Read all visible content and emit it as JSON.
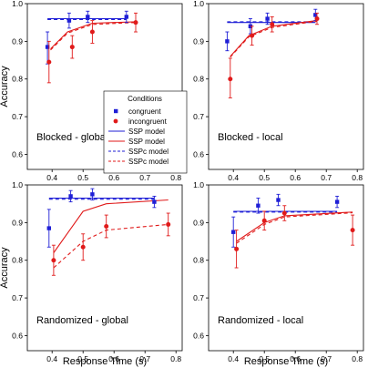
{
  "figure": {
    "xlabel": "Response Time (s)",
    "ylabel": "Accuracy"
  },
  "legend": {
    "title": "Conditions",
    "entries": [
      {
        "label": "congruent",
        "kind": "point-square",
        "color": "#1f1fd6"
      },
      {
        "label": "incongruent",
        "kind": "point-circle",
        "color": "#e01a1a"
      },
      {
        "label": "SSP model",
        "kind": "line-solid",
        "color": "#1f1fd6"
      },
      {
        "label": "SSP model",
        "kind": "line-solid",
        "color": "#e01a1a"
      },
      {
        "label": "SSPc model",
        "kind": "line-dashed",
        "color": "#1f1fd6"
      },
      {
        "label": "SSPc model",
        "kind": "line-dashed",
        "color": "#e01a1a"
      }
    ]
  },
  "colors": {
    "congruent": "#1f1fd6",
    "incongruent": "#e01a1a"
  },
  "chart_data": [
    {
      "type": "scatter",
      "title": "Blocked - global",
      "xlabel": "",
      "ylabel": "Accuracy",
      "xlim": [
        0.32,
        0.82
      ],
      "ylim": [
        0.56,
        1.0
      ],
      "xticks": [
        "0.4",
        "0.5",
        "0.6",
        "0.7",
        "0.8"
      ],
      "yticks": [
        "0.6",
        "0.7",
        "0.8",
        "0.9",
        "1.0"
      ],
      "series": [
        {
          "name": "congruent",
          "kind": "points",
          "color": "#1f1fd6",
          "points": [
            {
              "x": 0.385,
              "y": 0.885,
              "lo": 0.84,
              "hi": 0.925
            },
            {
              "x": 0.455,
              "y": 0.955,
              "lo": 0.935,
              "hi": 0.975
            },
            {
              "x": 0.515,
              "y": 0.965,
              "lo": 0.95,
              "hi": 0.98
            },
            {
              "x": 0.64,
              "y": 0.965,
              "lo": 0.95,
              "hi": 0.98
            }
          ]
        },
        {
          "name": "incongruent",
          "kind": "points",
          "color": "#e01a1a",
          "points": [
            {
              "x": 0.39,
              "y": 0.845,
              "lo": 0.79,
              "hi": 0.9
            },
            {
              "x": 0.465,
              "y": 0.885,
              "lo": 0.855,
              "hi": 0.915
            },
            {
              "x": 0.53,
              "y": 0.925,
              "lo": 0.895,
              "hi": 0.955
            },
            {
              "x": 0.67,
              "y": 0.95,
              "lo": 0.925,
              "hi": 0.975
            }
          ]
        },
        {
          "name": "SSP model",
          "kind": "solid",
          "color": "#1f1fd6",
          "points": [
            {
              "x": 0.385,
              "y": 0.96
            },
            {
              "x": 0.64,
              "y": 0.96
            }
          ]
        },
        {
          "name": "SSPc model",
          "kind": "dashed",
          "color": "#1f1fd6",
          "points": [
            {
              "x": 0.385,
              "y": 0.958
            },
            {
              "x": 0.64,
              "y": 0.958
            }
          ]
        },
        {
          "name": "SSP model",
          "kind": "solid",
          "color": "#e01a1a",
          "points": [
            {
              "x": 0.395,
              "y": 0.88
            },
            {
              "x": 0.45,
              "y": 0.925
            },
            {
              "x": 0.53,
              "y": 0.948
            },
            {
              "x": 0.67,
              "y": 0.952
            }
          ]
        },
        {
          "name": "SSPc model",
          "kind": "dashed",
          "color": "#e01a1a",
          "points": [
            {
              "x": 0.395,
              "y": 0.877
            },
            {
              "x": 0.45,
              "y": 0.922
            },
            {
              "x": 0.53,
              "y": 0.945
            },
            {
              "x": 0.67,
              "y": 0.95
            }
          ]
        }
      ]
    },
    {
      "type": "scatter",
      "title": "Blocked - local",
      "xlabel": "",
      "ylabel": "",
      "xlim": [
        0.32,
        0.82
      ],
      "ylim": [
        0.56,
        1.0
      ],
      "xticks": [
        "0.4",
        "0.5",
        "0.6",
        "0.7",
        "0.8"
      ],
      "yticks": [
        "0.6",
        "0.7",
        "0.8",
        "0.9",
        "1.0"
      ],
      "series": [
        {
          "name": "congruent",
          "kind": "points",
          "color": "#1f1fd6",
          "points": [
            {
              "x": 0.38,
              "y": 0.9,
              "lo": 0.875,
              "hi": 0.925
            },
            {
              "x": 0.455,
              "y": 0.94,
              "lo": 0.92,
              "hi": 0.96
            },
            {
              "x": 0.51,
              "y": 0.96,
              "lo": 0.945,
              "hi": 0.975
            },
            {
              "x": 0.665,
              "y": 0.97,
              "lo": 0.955,
              "hi": 0.985
            }
          ]
        },
        {
          "name": "incongruent",
          "kind": "points",
          "color": "#e01a1a",
          "points": [
            {
              "x": 0.39,
              "y": 0.8,
              "lo": 0.75,
              "hi": 0.855
            },
            {
              "x": 0.46,
              "y": 0.915,
              "lo": 0.89,
              "hi": 0.94
            },
            {
              "x": 0.525,
              "y": 0.945,
              "lo": 0.925,
              "hi": 0.965
            },
            {
              "x": 0.67,
              "y": 0.96,
              "lo": 0.945,
              "hi": 0.975
            }
          ]
        },
        {
          "name": "SSP model",
          "kind": "solid",
          "color": "#1f1fd6",
          "points": [
            {
              "x": 0.38,
              "y": 0.95
            },
            {
              "x": 0.665,
              "y": 0.95
            }
          ]
        },
        {
          "name": "SSPc model",
          "kind": "dashed",
          "color": "#1f1fd6",
          "points": [
            {
              "x": 0.38,
              "y": 0.952
            },
            {
              "x": 0.665,
              "y": 0.952
            }
          ]
        },
        {
          "name": "SSP model",
          "kind": "solid",
          "color": "#e01a1a",
          "points": [
            {
              "x": 0.39,
              "y": 0.86
            },
            {
              "x": 0.45,
              "y": 0.915
            },
            {
              "x": 0.525,
              "y": 0.94
            },
            {
              "x": 0.67,
              "y": 0.955
            }
          ]
        },
        {
          "name": "SSPc model",
          "kind": "dashed",
          "color": "#e01a1a",
          "points": [
            {
              "x": 0.39,
              "y": 0.858
            },
            {
              "x": 0.45,
              "y": 0.912
            },
            {
              "x": 0.525,
              "y": 0.937
            },
            {
              "x": 0.67,
              "y": 0.953
            }
          ]
        }
      ]
    },
    {
      "type": "scatter",
      "title": "Randomized - global",
      "xlabel": "Response Time (s)",
      "ylabel": "Accuracy",
      "xlim": [
        0.32,
        0.82
      ],
      "ylim": [
        0.56,
        1.0
      ],
      "xticks": [
        "0.4",
        "0.5",
        "0.6",
        "0.7",
        "0.8"
      ],
      "yticks": [
        "0.6",
        "0.7",
        "0.8",
        "0.9",
        "1.0"
      ],
      "series": [
        {
          "name": "congruent",
          "kind": "points",
          "color": "#1f1fd6",
          "points": [
            {
              "x": 0.39,
              "y": 0.885,
              "lo": 0.835,
              "hi": 0.935
            },
            {
              "x": 0.46,
              "y": 0.97,
              "lo": 0.955,
              "hi": 0.985
            },
            {
              "x": 0.53,
              "y": 0.975,
              "lo": 0.96,
              "hi": 0.99
            },
            {
              "x": 0.73,
              "y": 0.955,
              "lo": 0.94,
              "hi": 0.97
            }
          ]
        },
        {
          "name": "incongruent",
          "kind": "points",
          "color": "#e01a1a",
          "points": [
            {
              "x": 0.405,
              "y": 0.8,
              "lo": 0.76,
              "hi": 0.84
            },
            {
              "x": 0.5,
              "y": 0.835,
              "lo": 0.8,
              "hi": 0.87
            },
            {
              "x": 0.575,
              "y": 0.89,
              "lo": 0.86,
              "hi": 0.92
            },
            {
              "x": 0.775,
              "y": 0.895,
              "lo": 0.865,
              "hi": 0.925
            }
          ]
        },
        {
          "name": "SSP model",
          "kind": "solid",
          "color": "#1f1fd6",
          "points": [
            {
              "x": 0.39,
              "y": 0.965
            },
            {
              "x": 0.73,
              "y": 0.965
            }
          ]
        },
        {
          "name": "SSPc model",
          "kind": "dashed",
          "color": "#1f1fd6",
          "points": [
            {
              "x": 0.39,
              "y": 0.962
            },
            {
              "x": 0.73,
              "y": 0.962
            }
          ]
        },
        {
          "name": "SSP model",
          "kind": "solid",
          "color": "#e01a1a",
          "points": [
            {
              "x": 0.405,
              "y": 0.82
            },
            {
              "x": 0.5,
              "y": 0.93
            },
            {
              "x": 0.575,
              "y": 0.95
            },
            {
              "x": 0.775,
              "y": 0.96
            }
          ]
        },
        {
          "name": "SSPc model",
          "kind": "dashed",
          "color": "#e01a1a",
          "points": [
            {
              "x": 0.405,
              "y": 0.78
            },
            {
              "x": 0.5,
              "y": 0.85
            },
            {
              "x": 0.575,
              "y": 0.88
            },
            {
              "x": 0.775,
              "y": 0.895
            }
          ]
        }
      ]
    },
    {
      "type": "scatter",
      "title": "Randomized - local",
      "xlabel": "Response Time (s)",
      "ylabel": "",
      "xlim": [
        0.32,
        0.82
      ],
      "ylim": [
        0.56,
        1.0
      ],
      "xticks": [
        "0.4",
        "0.5",
        "0.6",
        "0.7",
        "0.8"
      ],
      "yticks": [
        "0.6",
        "0.7",
        "0.8",
        "0.9",
        "1.0"
      ],
      "series": [
        {
          "name": "congruent",
          "kind": "points",
          "color": "#1f1fd6",
          "points": [
            {
              "x": 0.4,
              "y": 0.875,
              "lo": 0.835,
              "hi": 0.915
            },
            {
              "x": 0.48,
              "y": 0.945,
              "lo": 0.925,
              "hi": 0.965
            },
            {
              "x": 0.545,
              "y": 0.96,
              "lo": 0.945,
              "hi": 0.975
            },
            {
              "x": 0.735,
              "y": 0.955,
              "lo": 0.94,
              "hi": 0.97
            }
          ]
        },
        {
          "name": "incongruent",
          "kind": "points",
          "color": "#e01a1a",
          "points": [
            {
              "x": 0.41,
              "y": 0.83,
              "lo": 0.78,
              "hi": 0.88
            },
            {
              "x": 0.5,
              "y": 0.905,
              "lo": 0.88,
              "hi": 0.93
            },
            {
              "x": 0.565,
              "y": 0.925,
              "lo": 0.905,
              "hi": 0.945
            },
            {
              "x": 0.785,
              "y": 0.88,
              "lo": 0.84,
              "hi": 0.92
            }
          ]
        },
        {
          "name": "SSP model",
          "kind": "solid",
          "color": "#1f1fd6",
          "points": [
            {
              "x": 0.4,
              "y": 0.93
            },
            {
              "x": 0.735,
              "y": 0.93
            }
          ]
        },
        {
          "name": "SSPc model",
          "kind": "dashed",
          "color": "#1f1fd6",
          "points": [
            {
              "x": 0.4,
              "y": 0.928
            },
            {
              "x": 0.735,
              "y": 0.928
            }
          ]
        },
        {
          "name": "SSP model",
          "kind": "solid",
          "color": "#e01a1a",
          "points": [
            {
              "x": 0.41,
              "y": 0.85
            },
            {
              "x": 0.5,
              "y": 0.9
            },
            {
              "x": 0.565,
              "y": 0.918
            },
            {
              "x": 0.785,
              "y": 0.928
            }
          ]
        },
        {
          "name": "SSPc model",
          "kind": "dashed",
          "color": "#e01a1a",
          "points": [
            {
              "x": 0.41,
              "y": 0.845
            },
            {
              "x": 0.5,
              "y": 0.895
            },
            {
              "x": 0.565,
              "y": 0.915
            },
            {
              "x": 0.785,
              "y": 0.926
            }
          ]
        }
      ]
    }
  ]
}
